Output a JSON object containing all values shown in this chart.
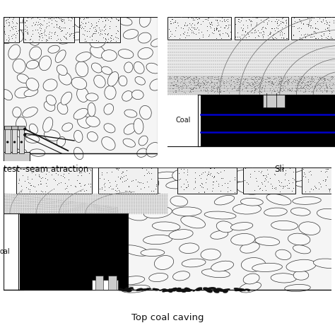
{
  "bg_color": "#ffffff",
  "label_top_left": "test -seam atraction",
  "label_top_right": "Sli",
  "label_bottom": "Top coal caving",
  "fig_width": 4.74,
  "fig_height": 4.74,
  "dpi": 100,
  "cobble_fc": "#f8f8f8",
  "cobble_ec": "#333333",
  "strata_fc": "#e0e0e0",
  "strata_ec": "#666666",
  "dotrock_fc": "#f0f0f0",
  "dotrock_ec": "#111111",
  "coal_fc": "#000000",
  "blue_line": "#0000cc"
}
